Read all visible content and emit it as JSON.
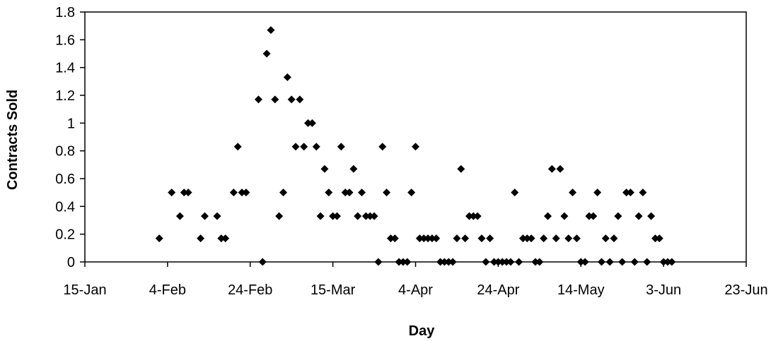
{
  "chart_data": {
    "type": "scatter",
    "title": "",
    "xlabel": "Day",
    "ylabel": "Contracts Sold",
    "xlim": [
      "15-Jan",
      "23-Jun"
    ],
    "ylim": [
      0,
      1.8
    ],
    "x_ticks": [
      "15-Jan",
      "4-Feb",
      "24-Feb",
      "15-Mar",
      "4-Apr",
      "24-Apr",
      "14-May",
      "3-Jun",
      "23-Jun"
    ],
    "y_ticks": [
      "0",
      "0.2",
      "0.4",
      "0.6",
      "0.8",
      "1",
      "1.2",
      "1.4",
      "1.6",
      "1.8"
    ],
    "grid": false,
    "legend": "none",
    "marker": "diamond",
    "marker_color": "#000000",
    "series": [
      {
        "points": [
          [
            "2-Feb",
            0.17
          ],
          [
            "5-Feb",
            0.5
          ],
          [
            "7-Feb",
            0.33
          ],
          [
            "8-Feb",
            0.5
          ],
          [
            "9-Feb",
            0.5
          ],
          [
            "12-Feb",
            0.17
          ],
          [
            "13-Feb",
            0.33
          ],
          [
            "16-Feb",
            0.33
          ],
          [
            "17-Feb",
            0.17
          ],
          [
            "18-Feb",
            0.17
          ],
          [
            "20-Feb",
            0.5
          ],
          [
            "21-Feb",
            0.83
          ],
          [
            "22-Feb",
            0.5
          ],
          [
            "23-Feb",
            0.5
          ],
          [
            "26-Feb",
            1.17
          ],
          [
            "27-Feb",
            0
          ],
          [
            "28-Feb",
            1.5
          ],
          [
            "29-Feb",
            1.67
          ],
          [
            "1-Mar",
            1.17
          ],
          [
            "2-Mar",
            0.33
          ],
          [
            "3-Mar",
            0.5
          ],
          [
            "4-Mar",
            1.33
          ],
          [
            "5-Mar",
            1.17
          ],
          [
            "6-Mar",
            0.83
          ],
          [
            "7-Mar",
            1.17
          ],
          [
            "8-Mar",
            0.83
          ],
          [
            "9-Mar",
            1.0
          ],
          [
            "10-Mar",
            1.0
          ],
          [
            "11-Mar",
            0.83
          ],
          [
            "12-Mar",
            0.33
          ],
          [
            "13-Mar",
            0.67
          ],
          [
            "14-Mar",
            0.5
          ],
          [
            "15-Mar",
            0.33
          ],
          [
            "16-Mar",
            0.33
          ],
          [
            "17-Mar",
            0.83
          ],
          [
            "18-Mar",
            0.5
          ],
          [
            "19-Mar",
            0.5
          ],
          [
            "20-Mar",
            0.67
          ],
          [
            "21-Mar",
            0.33
          ],
          [
            "22-Mar",
            0.5
          ],
          [
            "23-Mar",
            0.33
          ],
          [
            "24-Mar",
            0.33
          ],
          [
            "25-Mar",
            0.33
          ],
          [
            "26-Mar",
            0
          ],
          [
            "27-Mar",
            0.83
          ],
          [
            "28-Mar",
            0.5
          ],
          [
            "29-Mar",
            0.17
          ],
          [
            "30-Mar",
            0.17
          ],
          [
            "31-Mar",
            0
          ],
          [
            "1-Apr",
            0
          ],
          [
            "2-Apr",
            0
          ],
          [
            "3-Apr",
            0.5
          ],
          [
            "4-Apr",
            0.83
          ],
          [
            "5-Apr",
            0.17
          ],
          [
            "6-Apr",
            0.17
          ],
          [
            "7-Apr",
            0.17
          ],
          [
            "8-Apr",
            0.17
          ],
          [
            "9-Apr",
            0.17
          ],
          [
            "10-Apr",
            0
          ],
          [
            "11-Apr",
            0
          ],
          [
            "12-Apr",
            0
          ],
          [
            "13-Apr",
            0
          ],
          [
            "14-Apr",
            0.17
          ],
          [
            "15-Apr",
            0.67
          ],
          [
            "16-Apr",
            0.17
          ],
          [
            "17-Apr",
            0.33
          ],
          [
            "18-Apr",
            0.33
          ],
          [
            "19-Apr",
            0.33
          ],
          [
            "20-Apr",
            0.17
          ],
          [
            "21-Apr",
            0
          ],
          [
            "22-Apr",
            0.17
          ],
          [
            "23-Apr",
            0
          ],
          [
            "24-Apr",
            0
          ],
          [
            "25-Apr",
            0
          ],
          [
            "26-Apr",
            0
          ],
          [
            "27-Apr",
            0
          ],
          [
            "28-Apr",
            0.5
          ],
          [
            "29-Apr",
            0
          ],
          [
            "30-Apr",
            0.17
          ],
          [
            "1-May",
            0.17
          ],
          [
            "2-May",
            0.17
          ],
          [
            "3-May",
            0
          ],
          [
            "4-May",
            0
          ],
          [
            "5-May",
            0.17
          ],
          [
            "6-May",
            0.33
          ],
          [
            "7-May",
            0.67
          ],
          [
            "8-May",
            0.17
          ],
          [
            "9-May",
            0.67
          ],
          [
            "10-May",
            0.33
          ],
          [
            "11-May",
            0.17
          ],
          [
            "12-May",
            0.5
          ],
          [
            "13-May",
            0.17
          ],
          [
            "14-May",
            0
          ],
          [
            "15-May",
            0
          ],
          [
            "16-May",
            0.33
          ],
          [
            "17-May",
            0.33
          ],
          [
            "18-May",
            0.5
          ],
          [
            "19-May",
            0
          ],
          [
            "20-May",
            0.17
          ],
          [
            "21-May",
            0
          ],
          [
            "22-May",
            0.17
          ],
          [
            "23-May",
            0.33
          ],
          [
            "24-May",
            0
          ],
          [
            "25-May",
            0.5
          ],
          [
            "26-May",
            0.5
          ],
          [
            "27-May",
            0
          ],
          [
            "28-May",
            0.33
          ],
          [
            "29-May",
            0.5
          ],
          [
            "30-May",
            0
          ],
          [
            "31-May",
            0.33
          ],
          [
            "1-Jun",
            0.17
          ],
          [
            "2-Jun",
            0.17
          ],
          [
            "3-Jun",
            0
          ],
          [
            "4-Jun",
            0
          ],
          [
            "5-Jun",
            0
          ]
        ]
      }
    ]
  }
}
